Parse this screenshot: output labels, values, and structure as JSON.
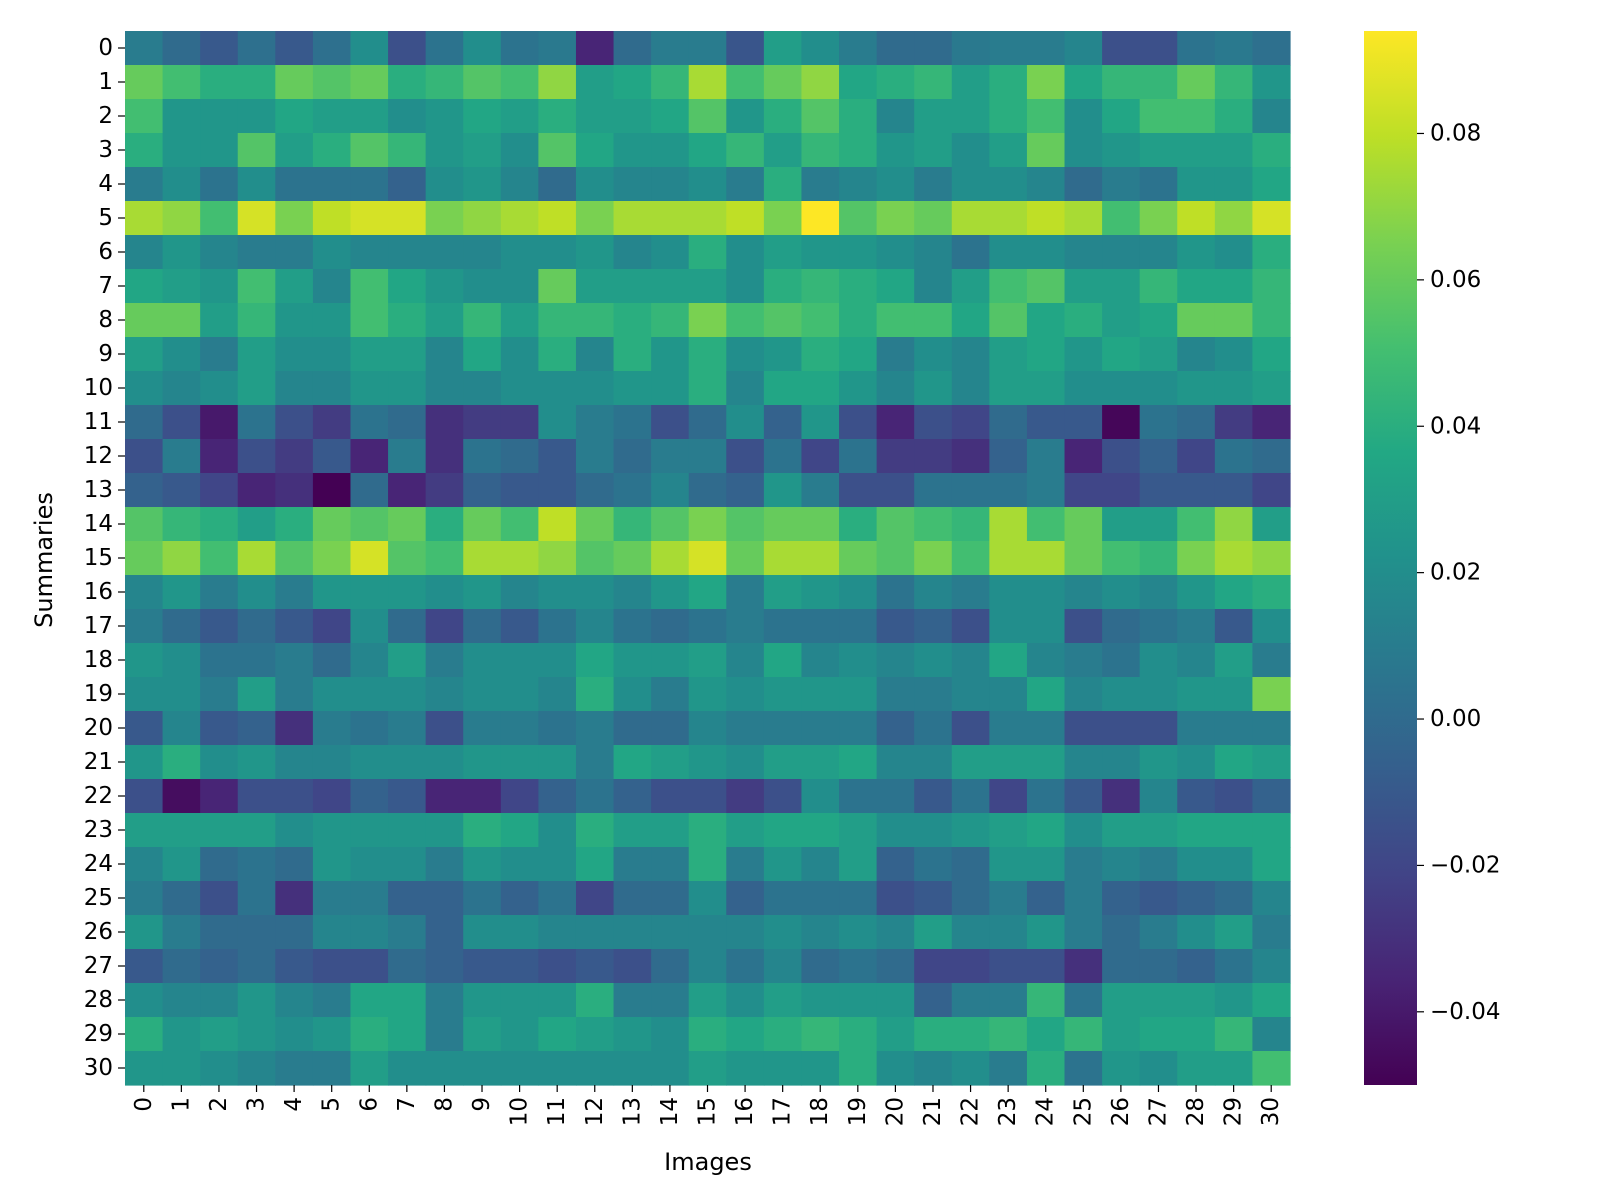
{
  "chart_data": {
    "type": "heatmap",
    "xlabel": "Images",
    "ylabel": "Summaries",
    "x_categories": [
      "0",
      "1",
      "2",
      "3",
      "4",
      "5",
      "6",
      "7",
      "8",
      "9",
      "10",
      "11",
      "12",
      "13",
      "14",
      "15",
      "16",
      "17",
      "18",
      "19",
      "20",
      "21",
      "22",
      "23",
      "24",
      "25",
      "26",
      "27",
      "28",
      "29",
      "30"
    ],
    "y_categories": [
      "0",
      "1",
      "2",
      "3",
      "4",
      "5",
      "6",
      "7",
      "8",
      "9",
      "10",
      "11",
      "12",
      "13",
      "14",
      "15",
      "16",
      "17",
      "18",
      "19",
      "20",
      "21",
      "22",
      "23",
      "24",
      "25",
      "26",
      "27",
      "28",
      "29",
      "30"
    ],
    "colormap": "viridis",
    "vmin": -0.05,
    "vmax": 0.094,
    "colorbar_ticks": [
      -0.04,
      -0.02,
      0.0,
      0.02,
      0.04,
      0.06,
      0.08
    ],
    "colorbar_tick_labels": [
      "−0.04",
      "−0.02",
      "0.00",
      "0.02",
      "0.04",
      "0.06",
      "0.08"
    ],
    "values": [
      [
        0.01,
        0.0,
        -0.01,
        0.003,
        -0.01,
        0.003,
        0.02,
        -0.015,
        0.005,
        0.02,
        0.005,
        0.008,
        -0.035,
        0.0,
        0.01,
        0.01,
        -0.012,
        0.03,
        0.02,
        0.01,
        0.0,
        0.0,
        0.008,
        0.01,
        0.01,
        0.015,
        -0.015,
        -0.015,
        0.005,
        0.008,
        0.003
      ],
      [
        0.06,
        0.05,
        0.04,
        0.04,
        0.06,
        0.055,
        0.06,
        0.04,
        0.045,
        0.055,
        0.05,
        0.07,
        0.03,
        0.035,
        0.045,
        0.075,
        0.05,
        0.06,
        0.07,
        0.035,
        0.04,
        0.045,
        0.03,
        0.04,
        0.065,
        0.035,
        0.045,
        0.045,
        0.06,
        0.045,
        0.025
      ],
      [
        0.05,
        0.025,
        0.025,
        0.025,
        0.035,
        0.03,
        0.03,
        0.02,
        0.025,
        0.035,
        0.03,
        0.04,
        0.03,
        0.03,
        0.035,
        0.055,
        0.025,
        0.04,
        0.055,
        0.04,
        0.015,
        0.03,
        0.03,
        0.04,
        0.05,
        0.02,
        0.035,
        0.05,
        0.05,
        0.04,
        0.015
      ],
      [
        0.04,
        0.025,
        0.025,
        0.055,
        0.03,
        0.04,
        0.055,
        0.045,
        0.025,
        0.03,
        0.02,
        0.055,
        0.035,
        0.025,
        0.025,
        0.035,
        0.045,
        0.03,
        0.045,
        0.04,
        0.025,
        0.03,
        0.02,
        0.03,
        0.06,
        0.02,
        0.025,
        0.03,
        0.03,
        0.03,
        0.04
      ],
      [
        0.01,
        0.02,
        0.005,
        0.02,
        0.005,
        0.005,
        0.005,
        -0.005,
        0.02,
        0.025,
        0.015,
        0.0,
        0.02,
        0.015,
        0.015,
        0.02,
        0.01,
        0.04,
        0.01,
        0.015,
        0.02,
        0.01,
        0.02,
        0.02,
        0.015,
        0.0,
        0.01,
        0.005,
        0.025,
        0.025,
        0.035
      ],
      [
        0.075,
        0.07,
        0.05,
        0.085,
        0.065,
        0.08,
        0.085,
        0.085,
        0.065,
        0.07,
        0.075,
        0.08,
        0.065,
        0.075,
        0.075,
        0.075,
        0.08,
        0.065,
        0.094,
        0.055,
        0.065,
        0.06,
        0.075,
        0.075,
        0.08,
        0.075,
        0.05,
        0.065,
        0.08,
        0.07,
        0.085
      ],
      [
        0.015,
        0.025,
        0.015,
        0.01,
        0.01,
        0.02,
        0.015,
        0.015,
        0.015,
        0.015,
        0.02,
        0.02,
        0.025,
        0.015,
        0.02,
        0.04,
        0.02,
        0.03,
        0.025,
        0.025,
        0.02,
        0.015,
        0.005,
        0.02,
        0.02,
        0.015,
        0.015,
        0.015,
        0.025,
        0.02,
        0.04
      ],
      [
        0.035,
        0.03,
        0.025,
        0.05,
        0.03,
        0.015,
        0.05,
        0.035,
        0.025,
        0.02,
        0.02,
        0.06,
        0.03,
        0.03,
        0.03,
        0.03,
        0.02,
        0.04,
        0.045,
        0.04,
        0.035,
        0.015,
        0.03,
        0.05,
        0.055,
        0.03,
        0.03,
        0.045,
        0.035,
        0.035,
        0.045
      ],
      [
        0.06,
        0.06,
        0.03,
        0.045,
        0.025,
        0.025,
        0.05,
        0.04,
        0.03,
        0.045,
        0.03,
        0.045,
        0.045,
        0.04,
        0.045,
        0.065,
        0.05,
        0.055,
        0.05,
        0.04,
        0.05,
        0.05,
        0.035,
        0.055,
        0.035,
        0.04,
        0.03,
        0.035,
        0.06,
        0.06,
        0.045
      ],
      [
        0.03,
        0.02,
        0.01,
        0.03,
        0.02,
        0.02,
        0.03,
        0.03,
        0.015,
        0.035,
        0.02,
        0.04,
        0.015,
        0.04,
        0.025,
        0.04,
        0.02,
        0.025,
        0.04,
        0.035,
        0.01,
        0.02,
        0.015,
        0.03,
        0.035,
        0.025,
        0.035,
        0.03,
        0.015,
        0.02,
        0.035
      ],
      [
        0.02,
        0.015,
        0.02,
        0.03,
        0.015,
        0.015,
        0.025,
        0.025,
        0.015,
        0.015,
        0.02,
        0.02,
        0.02,
        0.025,
        0.025,
        0.04,
        0.015,
        0.035,
        0.035,
        0.025,
        0.015,
        0.025,
        0.015,
        0.03,
        0.03,
        0.02,
        0.02,
        0.02,
        0.025,
        0.025,
        0.03
      ],
      [
        0.0,
        -0.015,
        -0.04,
        0.005,
        -0.015,
        -0.025,
        0.005,
        0.0,
        -0.03,
        -0.025,
        -0.025,
        0.02,
        0.01,
        0.005,
        -0.015,
        0.0,
        0.02,
        -0.005,
        0.025,
        -0.015,
        -0.035,
        -0.015,
        -0.02,
        0.0,
        -0.01,
        -0.01,
        -0.048,
        0.005,
        0.0,
        -0.025,
        -0.035
      ],
      [
        -0.015,
        0.01,
        -0.035,
        -0.015,
        -0.025,
        -0.01,
        -0.035,
        0.01,
        -0.03,
        0.005,
        0.0,
        -0.01,
        0.01,
        0.0,
        0.01,
        0.01,
        -0.015,
        0.005,
        -0.02,
        0.005,
        -0.025,
        -0.025,
        -0.03,
        -0.005,
        0.01,
        -0.035,
        -0.015,
        -0.005,
        -0.02,
        0.005,
        0.0
      ],
      [
        -0.005,
        -0.01,
        -0.02,
        -0.035,
        -0.03,
        -0.05,
        0.0,
        -0.035,
        -0.025,
        -0.005,
        -0.01,
        -0.01,
        0.0,
        0.005,
        0.015,
        0.0,
        -0.005,
        0.025,
        0.01,
        -0.015,
        -0.015,
        0.005,
        0.005,
        0.005,
        0.01,
        -0.02,
        -0.02,
        -0.01,
        -0.01,
        -0.01,
        -0.02
      ],
      [
        0.055,
        0.045,
        0.04,
        0.03,
        0.04,
        0.06,
        0.055,
        0.06,
        0.04,
        0.06,
        0.05,
        0.08,
        0.06,
        0.045,
        0.055,
        0.065,
        0.055,
        0.06,
        0.06,
        0.04,
        0.055,
        0.05,
        0.045,
        0.075,
        0.05,
        0.06,
        0.03,
        0.03,
        0.05,
        0.07,
        0.03
      ],
      [
        0.06,
        0.07,
        0.05,
        0.075,
        0.055,
        0.065,
        0.085,
        0.055,
        0.05,
        0.075,
        0.075,
        0.07,
        0.055,
        0.06,
        0.075,
        0.085,
        0.06,
        0.075,
        0.075,
        0.06,
        0.055,
        0.065,
        0.05,
        0.075,
        0.075,
        0.06,
        0.05,
        0.045,
        0.065,
        0.075,
        0.07
      ],
      [
        0.015,
        0.025,
        0.01,
        0.02,
        0.01,
        0.025,
        0.025,
        0.025,
        0.02,
        0.025,
        0.015,
        0.02,
        0.02,
        0.015,
        0.025,
        0.035,
        0.01,
        0.03,
        0.025,
        0.02,
        0.005,
        0.015,
        0.01,
        0.02,
        0.02,
        0.015,
        0.02,
        0.015,
        0.025,
        0.035,
        0.04
      ],
      [
        0.01,
        0.0,
        -0.01,
        0.0,
        -0.01,
        -0.02,
        0.02,
        0.0,
        -0.02,
        0.0,
        -0.01,
        0.005,
        0.015,
        0.005,
        0.0,
        0.005,
        0.01,
        0.005,
        0.005,
        0.005,
        -0.01,
        -0.005,
        -0.015,
        0.02,
        0.02,
        -0.015,
        0.0,
        0.005,
        0.01,
        -0.01,
        0.02
      ],
      [
        0.025,
        0.02,
        0.005,
        0.005,
        0.01,
        0.0,
        0.015,
        0.03,
        0.01,
        0.02,
        0.02,
        0.02,
        0.035,
        0.025,
        0.025,
        0.03,
        0.015,
        0.035,
        0.015,
        0.02,
        0.015,
        0.02,
        0.015,
        0.035,
        0.015,
        0.01,
        0.005,
        0.02,
        0.015,
        0.03,
        0.01
      ],
      [
        0.02,
        0.02,
        0.01,
        0.03,
        0.01,
        0.02,
        0.02,
        0.02,
        0.015,
        0.02,
        0.02,
        0.015,
        0.04,
        0.02,
        0.01,
        0.025,
        0.02,
        0.025,
        0.025,
        0.025,
        0.01,
        0.01,
        0.015,
        0.015,
        0.035,
        0.015,
        0.02,
        0.02,
        0.025,
        0.025,
        0.065
      ],
      [
        -0.01,
        0.015,
        -0.01,
        -0.005,
        -0.03,
        0.01,
        0.005,
        0.01,
        -0.015,
        0.01,
        0.01,
        0.005,
        0.01,
        0.0,
        0.0,
        0.015,
        0.01,
        0.01,
        0.01,
        0.01,
        -0.005,
        0.005,
        -0.015,
        0.01,
        0.01,
        -0.015,
        -0.015,
        -0.015,
        0.01,
        0.01,
        0.01
      ],
      [
        0.025,
        0.04,
        0.02,
        0.025,
        0.015,
        0.015,
        0.02,
        0.02,
        0.02,
        0.025,
        0.025,
        0.025,
        0.01,
        0.035,
        0.03,
        0.025,
        0.02,
        0.03,
        0.03,
        0.035,
        0.015,
        0.015,
        0.03,
        0.03,
        0.03,
        0.015,
        0.015,
        0.025,
        0.02,
        0.035,
        0.03
      ],
      [
        -0.015,
        -0.045,
        -0.035,
        -0.015,
        -0.015,
        -0.02,
        -0.005,
        -0.01,
        -0.035,
        -0.035,
        -0.02,
        -0.005,
        0.005,
        -0.005,
        -0.015,
        -0.015,
        -0.025,
        -0.015,
        0.02,
        0.005,
        0.005,
        -0.01,
        0.005,
        -0.02,
        0.005,
        -0.01,
        -0.03,
        0.015,
        -0.01,
        -0.015,
        -0.005
      ],
      [
        0.03,
        0.03,
        0.03,
        0.03,
        0.02,
        0.025,
        0.025,
        0.025,
        0.025,
        0.04,
        0.035,
        0.02,
        0.04,
        0.03,
        0.03,
        0.04,
        0.03,
        0.035,
        0.035,
        0.03,
        0.02,
        0.02,
        0.025,
        0.03,
        0.035,
        0.02,
        0.03,
        0.03,
        0.035,
        0.035,
        0.035
      ],
      [
        0.015,
        0.025,
        0.0,
        0.005,
        0.0,
        0.025,
        0.02,
        0.02,
        0.01,
        0.025,
        0.02,
        0.02,
        0.035,
        0.01,
        0.01,
        0.04,
        0.01,
        0.025,
        0.015,
        0.03,
        -0.005,
        0.005,
        0.0,
        0.025,
        0.025,
        0.01,
        0.015,
        0.01,
        0.02,
        0.02,
        0.035
      ],
      [
        0.01,
        0.0,
        -0.015,
        0.005,
        -0.03,
        0.01,
        0.01,
        -0.005,
        -0.005,
        0.005,
        -0.005,
        0.005,
        -0.02,
        0.0,
        0.0,
        0.02,
        -0.005,
        0.005,
        0.005,
        0.005,
        -0.015,
        -0.01,
        0.0,
        0.01,
        -0.005,
        0.01,
        -0.005,
        -0.01,
        -0.005,
        0.0,
        0.015
      ],
      [
        0.025,
        0.01,
        0.0,
        0.0,
        0.0,
        0.015,
        0.015,
        0.01,
        -0.005,
        0.02,
        0.02,
        0.015,
        0.015,
        0.015,
        0.015,
        0.015,
        0.015,
        0.02,
        0.015,
        0.02,
        0.015,
        0.03,
        0.015,
        0.015,
        0.025,
        0.01,
        0.0,
        0.01,
        0.02,
        0.03,
        0.01
      ],
      [
        -0.01,
        0.0,
        -0.005,
        0.0,
        -0.01,
        -0.015,
        -0.015,
        0.0,
        -0.005,
        -0.01,
        -0.01,
        -0.015,
        -0.01,
        -0.015,
        0.0,
        0.015,
        0.005,
        0.015,
        0.0,
        0.005,
        0.0,
        -0.02,
        -0.02,
        -0.015,
        -0.015,
        -0.03,
        0.0,
        0.0,
        -0.005,
        0.005,
        0.015
      ],
      [
        0.02,
        0.015,
        0.015,
        0.025,
        0.015,
        0.01,
        0.035,
        0.035,
        0.01,
        0.025,
        0.025,
        0.025,
        0.04,
        0.01,
        0.01,
        0.03,
        0.02,
        0.03,
        0.025,
        0.025,
        0.025,
        -0.005,
        0.01,
        0.01,
        0.045,
        0.005,
        0.03,
        0.03,
        0.03,
        0.025,
        0.035
      ],
      [
        0.04,
        0.025,
        0.03,
        0.025,
        0.02,
        0.025,
        0.04,
        0.035,
        0.01,
        0.03,
        0.025,
        0.035,
        0.03,
        0.025,
        0.02,
        0.04,
        0.035,
        0.04,
        0.045,
        0.04,
        0.03,
        0.04,
        0.04,
        0.045,
        0.035,
        0.045,
        0.03,
        0.035,
        0.035,
        0.045,
        0.015
      ],
      [
        0.025,
        0.025,
        0.02,
        0.015,
        0.01,
        0.01,
        0.03,
        0.02,
        0.02,
        0.02,
        0.02,
        0.02,
        0.02,
        0.02,
        0.02,
        0.03,
        0.025,
        0.025,
        0.025,
        0.04,
        0.02,
        0.015,
        0.02,
        0.01,
        0.04,
        0.005,
        0.025,
        0.02,
        0.03,
        0.03,
        0.05
      ]
    ]
  }
}
